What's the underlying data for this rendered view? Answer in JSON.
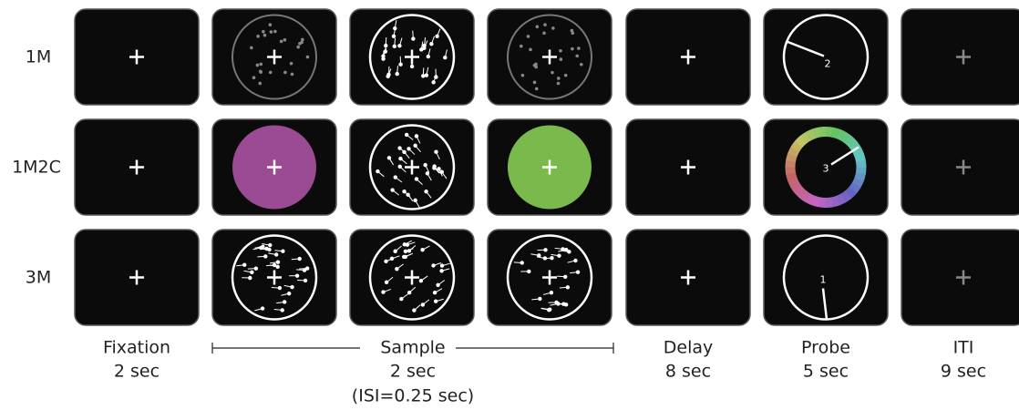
{
  "rows": [
    {
      "label": "1M",
      "probe": "2"
    },
    {
      "label": "1M2C",
      "probe": "3"
    },
    {
      "label": "3M",
      "probe": "1"
    }
  ],
  "columns": [
    {
      "title": "Fixation",
      "duration": "2 sec"
    },
    {
      "title": "Sample",
      "duration": "2 sec",
      "note": "(ISI=0.25 sec)"
    },
    {
      "title": "Delay",
      "duration": "8 sec"
    },
    {
      "title": "Probe",
      "duration": "5 sec"
    },
    {
      "title": "ITI",
      "duration": "9 sec"
    }
  ]
}
